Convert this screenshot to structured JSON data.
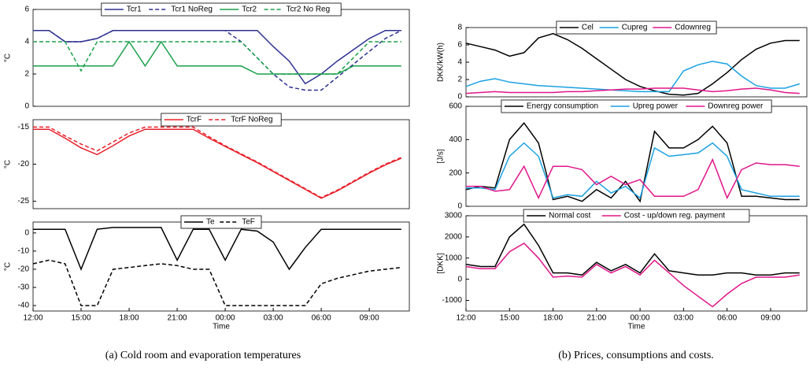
{
  "chart_data": [
    {
      "type": "line",
      "ylabel": "°C",
      "xlim": [
        0,
        23.5
      ],
      "ylim": [
        0,
        6
      ],
      "yticks": [
        0,
        2,
        4,
        6
      ],
      "x": [
        0,
        1,
        2,
        3,
        4,
        5,
        6,
        7,
        8,
        9,
        10,
        11,
        12,
        13,
        14,
        15,
        16,
        17,
        18,
        19,
        20,
        21,
        22,
        23
      ],
      "series": [
        {
          "name": "Tcr1",
          "color": "#2e3192",
          "linestyle": "solid",
          "values": [
            4.7,
            4.7,
            4.0,
            4.0,
            4.2,
            4.7,
            4.7,
            4.7,
            4.7,
            4.7,
            4.7,
            4.7,
            4.7,
            4.7,
            4.7,
            3.7,
            2.8,
            1.4,
            2.0,
            2.8,
            3.5,
            4.2,
            4.7,
            4.7
          ]
        },
        {
          "name": "Tcr1 NoReg",
          "color": "#2e3192",
          "linestyle": "dashed",
          "values": [
            4.7,
            4.7,
            4.0,
            4.0,
            4.2,
            4.7,
            4.7,
            4.7,
            4.7,
            4.7,
            4.7,
            4.7,
            4.7,
            4.0,
            3.0,
            2.0,
            1.2,
            1.0,
            1.0,
            1.8,
            2.6,
            3.4,
            4.2,
            4.7
          ]
        },
        {
          "name": "Tcr2",
          "color": "#1aa04a",
          "linestyle": "solid",
          "values": [
            2.5,
            2.5,
            2.5,
            2.5,
            2.5,
            2.5,
            4.0,
            2.5,
            4.0,
            2.5,
            2.5,
            2.5,
            2.5,
            2.5,
            2.0,
            2.0,
            2.0,
            2.0,
            2.0,
            2.0,
            2.5,
            2.5,
            2.5,
            2.5
          ]
        },
        {
          "name": "Tcr2 No Reg",
          "color": "#1aa04a",
          "linestyle": "dashed",
          "values": [
            4.0,
            4.0,
            4.0,
            2.2,
            4.0,
            4.0,
            4.0,
            4.0,
            4.0,
            4.0,
            4.0,
            4.0,
            4.0,
            4.0,
            3.0,
            2.0,
            2.0,
            2.0,
            2.0,
            2.0,
            3.0,
            4.0,
            4.0,
            4.0
          ]
        }
      ]
    },
    {
      "type": "line",
      "ylabel": "°C",
      "xlim": [
        0,
        23.5
      ],
      "ylim": [
        -26,
        -14
      ],
      "yticks": [
        -25,
        -20,
        -15
      ],
      "x": [
        0,
        1,
        2,
        3,
        4,
        5,
        6,
        7,
        8,
        9,
        10,
        11,
        12,
        13,
        14,
        15,
        16,
        17,
        18,
        19,
        20,
        21,
        22,
        23
      ],
      "series": [
        {
          "name": "TcrF",
          "color": "#e8202a",
          "linestyle": "solid",
          "values": [
            -15.3,
            -15.3,
            -16.5,
            -17.8,
            -18.7,
            -17.5,
            -16.2,
            -15.3,
            -15.3,
            -15.3,
            -15.3,
            -16.5,
            -17.6,
            -18.7,
            -19.8,
            -21,
            -22.2,
            -23.4,
            -24.6,
            -23.6,
            -22.4,
            -21.2,
            -20.1,
            -19.2
          ]
        },
        {
          "name": "TcrF NoReg",
          "color": "#e8202a",
          "linestyle": "dashed",
          "values": [
            -15,
            -15,
            -16.2,
            -17.3,
            -18.2,
            -17,
            -15.8,
            -15,
            -15,
            -15,
            -15,
            -16.3,
            -17.5,
            -18.6,
            -19.7,
            -20.9,
            -22.1,
            -23.3,
            -24.5,
            -23.5,
            -22.3,
            -21.1,
            -20,
            -19.1
          ]
        }
      ]
    },
    {
      "type": "line",
      "ylabel": "°C",
      "xlabel": "Time",
      "xlim": [
        0,
        23.5
      ],
      "ylim": [
        -43,
        6
      ],
      "yticks": [
        -40,
        -30,
        -20,
        -10,
        0
      ],
      "xticks": [
        {
          "value": 0,
          "label": "12:00"
        },
        {
          "value": 3,
          "label": "15:00"
        },
        {
          "value": 6,
          "label": "18:00"
        },
        {
          "value": 9,
          "label": "21:00"
        },
        {
          "value": 12,
          "label": "00:00"
        },
        {
          "value": 15,
          "label": "03:00"
        },
        {
          "value": 18,
          "label": "06:00"
        },
        {
          "value": 21,
          "label": "09:00"
        }
      ],
      "x": [
        0,
        1,
        2,
        3,
        4,
        5,
        6,
        7,
        8,
        9,
        10,
        11,
        12,
        13,
        14,
        15,
        16,
        17,
        18,
        19,
        20,
        21,
        22,
        23
      ],
      "series": [
        {
          "name": "Te",
          "color": "#000000",
          "linestyle": "solid",
          "values": [
            2,
            2,
            2,
            -20,
            2,
            3,
            3,
            3,
            3,
            -15,
            2,
            2,
            -15,
            2,
            1,
            -5,
            -20,
            -8,
            2,
            2,
            2,
            2,
            2,
            2
          ]
        },
        {
          "name": "TeF",
          "color": "#000000",
          "linestyle": "dashed",
          "values": [
            -17,
            -15,
            -17,
            -40,
            -40,
            -20,
            -19,
            -18,
            -17,
            -18,
            -20,
            -20,
            -40,
            -40,
            -40,
            -40,
            -40,
            -40,
            -28,
            -25,
            -23,
            -21,
            -20,
            -19
          ]
        }
      ]
    },
    {
      "type": "line",
      "ylabel": "DKK/kW(h)",
      "xlim": [
        0,
        23.5
      ],
      "ylim": [
        0,
        8
      ],
      "yticks": [
        0,
        2,
        4,
        6,
        8
      ],
      "x": [
        0,
        1,
        2,
        3,
        4,
        5,
        6,
        7,
        8,
        9,
        10,
        11,
        12,
        13,
        14,
        15,
        16,
        17,
        18,
        19,
        20,
        21,
        22,
        23
      ],
      "series": [
        {
          "name": "Cel",
          "color": "#000000",
          "linestyle": "solid",
          "values": [
            6.2,
            5.8,
            5.4,
            4.7,
            5.1,
            6.8,
            7.3,
            6.6,
            5.6,
            4.4,
            3.2,
            2.0,
            1.2,
            0.7,
            0.3,
            0.2,
            0.4,
            1.5,
            2.8,
            4.3,
            5.5,
            6.2,
            6.5,
            6.5
          ]
        },
        {
          "name": "Cupreg",
          "color": "#1ba1e2",
          "linestyle": "solid",
          "values": [
            1.2,
            1.8,
            2.1,
            1.7,
            1.5,
            1.3,
            1.2,
            1.1,
            1.0,
            0.9,
            0.8,
            0.7,
            0.6,
            0.6,
            0.6,
            3.0,
            3.7,
            4.1,
            3.8,
            2.4,
            1.3,
            1.0,
            1.0,
            1.5
          ]
        },
        {
          "name": "Cdownreg",
          "color": "#e0168a",
          "linestyle": "solid",
          "values": [
            0.4,
            0.5,
            0.6,
            0.5,
            0.5,
            0.5,
            0.5,
            0.6,
            0.6,
            0.7,
            0.8,
            0.9,
            0.9,
            1.0,
            1.0,
            1.0,
            0.8,
            0.6,
            0.7,
            0.9,
            1.0,
            0.8,
            0.5,
            0.4
          ]
        }
      ]
    },
    {
      "type": "line",
      "ylabel": "[J/s]",
      "xlim": [
        0,
        23.5
      ],
      "ylim": [
        0,
        600
      ],
      "yticks": [
        0,
        200,
        400,
        600
      ],
      "x": [
        0,
        1,
        2,
        3,
        4,
        5,
        6,
        7,
        8,
        9,
        10,
        11,
        12,
        13,
        14,
        15,
        16,
        17,
        18,
        19,
        20,
        21,
        22,
        23
      ],
      "series": [
        {
          "name": "Energy consumption",
          "color": "#000000",
          "linestyle": "solid",
          "values": [
            100,
            120,
            110,
            400,
            500,
            380,
            40,
            60,
            30,
            100,
            50,
            150,
            30,
            450,
            350,
            350,
            400,
            480,
            380,
            60,
            60,
            50,
            40,
            40
          ]
        },
        {
          "name": "Upreg power",
          "color": "#1ba1e2",
          "linestyle": "solid",
          "values": [
            110,
            110,
            100,
            300,
            380,
            300,
            50,
            70,
            60,
            150,
            80,
            120,
            50,
            350,
            300,
            310,
            320,
            380,
            300,
            100,
            80,
            60,
            60,
            60
          ]
        },
        {
          "name": "Downreg power",
          "color": "#e0168a",
          "linestyle": "solid",
          "values": [
            120,
            120,
            90,
            100,
            240,
            50,
            240,
            240,
            220,
            130,
            180,
            130,
            160,
            60,
            60,
            60,
            100,
            280,
            50,
            220,
            260,
            250,
            250,
            240
          ]
        }
      ]
    },
    {
      "type": "line",
      "ylabel": "[DKK]",
      "xlabel": "Time",
      "xlim": [
        0,
        23.5
      ],
      "ylim": [
        -1500,
        3000
      ],
      "yticks": [
        -1000,
        0,
        1000,
        2000,
        3000
      ],
      "xticks": [
        {
          "value": 0,
          "label": "12:00"
        },
        {
          "value": 3,
          "label": "15:00"
        },
        {
          "value": 6,
          "label": "18:00"
        },
        {
          "value": 9,
          "label": "21:00"
        },
        {
          "value": 12,
          "label": "00:00"
        },
        {
          "value": 15,
          "label": "03:00"
        },
        {
          "value": 18,
          "label": "06:00"
        },
        {
          "value": 21,
          "label": "09:00"
        }
      ],
      "x": [
        0,
        1,
        2,
        3,
        4,
        5,
        6,
        7,
        8,
        9,
        10,
        11,
        12,
        13,
        14,
        15,
        16,
        17,
        18,
        19,
        20,
        21,
        22,
        23
      ],
      "series": [
        {
          "name": "Normal cost",
          "color": "#000000",
          "linestyle": "solid",
          "values": [
            700,
            600,
            600,
            2000,
            2600,
            1600,
            300,
            300,
            200,
            800,
            400,
            700,
            300,
            1200,
            400,
            300,
            200,
            200,
            300,
            300,
            200,
            200,
            300,
            300
          ]
        },
        {
          "name": "Cost - up/down reg. payment",
          "color": "#e0168a",
          "linestyle": "solid",
          "values": [
            600,
            500,
            500,
            1300,
            1700,
            1000,
            100,
            150,
            100,
            700,
            300,
            600,
            200,
            900,
            300,
            -300,
            -800,
            -1300,
            -700,
            -200,
            100,
            100,
            100,
            200
          ]
        }
      ]
    }
  ],
  "captions": [
    "(a) Cold room and evaporation temperatures",
    "(b) Prices, consumptions and costs."
  ]
}
